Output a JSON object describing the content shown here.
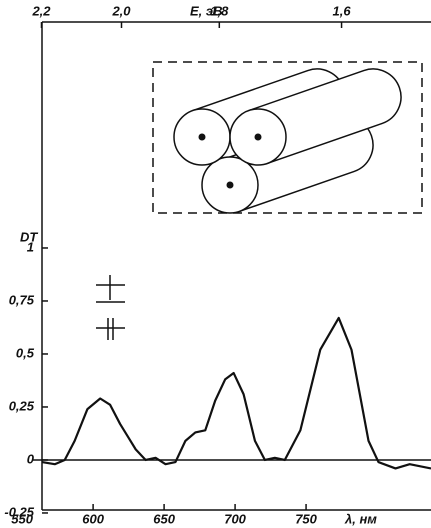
{
  "chart_data": {
    "type": "line",
    "y_label": "DT",
    "x_label": "λ, нм",
    "x2_label": "E, эВ",
    "x": [
      564,
      573,
      580,
      587,
      596,
      605,
      612,
      619,
      630,
      637,
      644,
      651,
      658,
      665,
      672,
      679,
      686,
      693,
      699,
      706,
      714,
      721,
      728,
      735,
      746,
      760,
      773,
      782,
      794,
      801,
      813,
      823,
      838
    ],
    "series": [
      {
        "color": "#111111",
        "values": [
          -0.01,
          -0.02,
          0,
          0.09,
          0.24,
          0.29,
          0.26,
          0.17,
          0.05,
          0,
          0.01,
          -0.02,
          -0.01,
          0.09,
          0.13,
          0.14,
          0.28,
          0.38,
          0.41,
          0.31,
          0.09,
          0,
          0.01,
          0,
          0.14,
          0.52,
          0.67,
          0.52,
          0.09,
          -0.01,
          -0.04,
          -0.02,
          -0.04
        ]
      }
    ],
    "xlim": [
      564,
      838
    ],
    "xticks": [
      550,
      600,
      650,
      700,
      750
    ],
    "x2ticks": [
      {
        "value": 2.2,
        "label": "2,2"
      },
      {
        "value": 2.0,
        "label": "2,0"
      },
      {
        "value": 1.8,
        "label": "1,8"
      },
      {
        "value": 1.6,
        "label": "1,6"
      }
    ],
    "ylim": [
      -0.236,
      2.066
    ],
    "yticks": [
      {
        "value": -0.25,
        "label": "-0,25"
      },
      0,
      {
        "value": 0.25,
        "label": "0,25"
      },
      {
        "value": 0.5,
        "label": "0,5"
      },
      {
        "value": 0.75,
        "label": "0,75"
      },
      1
    ]
  }
}
